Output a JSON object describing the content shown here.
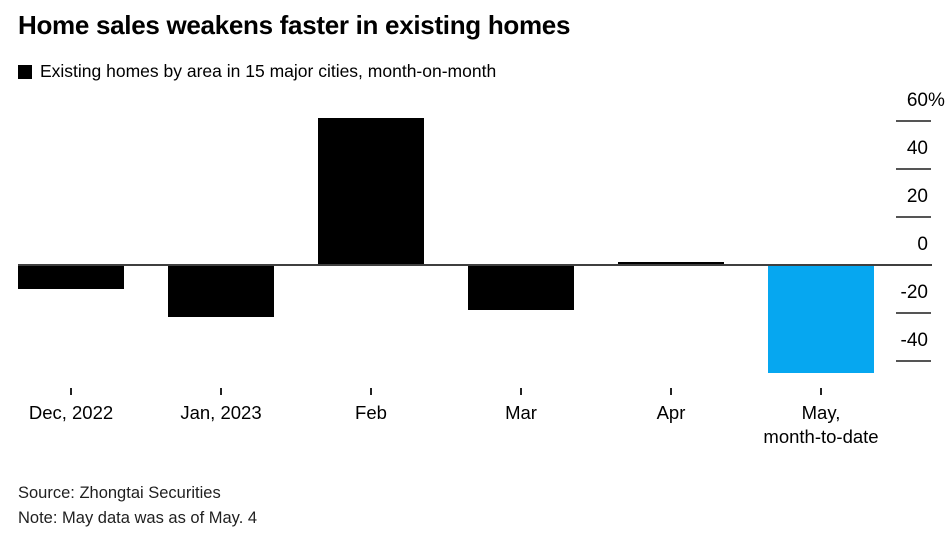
{
  "header": {
    "title": "Home sales weakens faster in existing homes",
    "legend_label": "Existing homes by area in 15 major cities, month-on-month",
    "legend_swatch_color": "#000000"
  },
  "chart_data": {
    "type": "bar",
    "title": "Home sales weakens faster in existing homes",
    "series_name": "Existing homes by area in 15 major cities, month-on-month",
    "categories": [
      "Dec, 2022",
      "Jan, 2023",
      "Feb",
      "Mar",
      "Apr",
      "May,\nmonth-to-date"
    ],
    "values": [
      -10,
      -22,
      61,
      -19,
      1,
      -45
    ],
    "unit": "%",
    "bar_colors": [
      "#000000",
      "#000000",
      "#000000",
      "#000000",
      "#000000",
      "#06a7f0"
    ],
    "ytick_values": [
      60,
      40,
      20,
      0,
      -20,
      -40
    ],
    "ytick_labels": [
      "60%",
      "40",
      "20",
      "0",
      "-20",
      "-40"
    ],
    "ylim": [
      -50,
      66
    ],
    "xlabel": "",
    "ylabel": "",
    "grid": false,
    "axis_side": "right",
    "legend_position": "top-left",
    "accent_color": "#06a7f0"
  },
  "footer": {
    "source": "Source: Zhongtai Securities",
    "note": "Note: May data was as of May. 4"
  }
}
